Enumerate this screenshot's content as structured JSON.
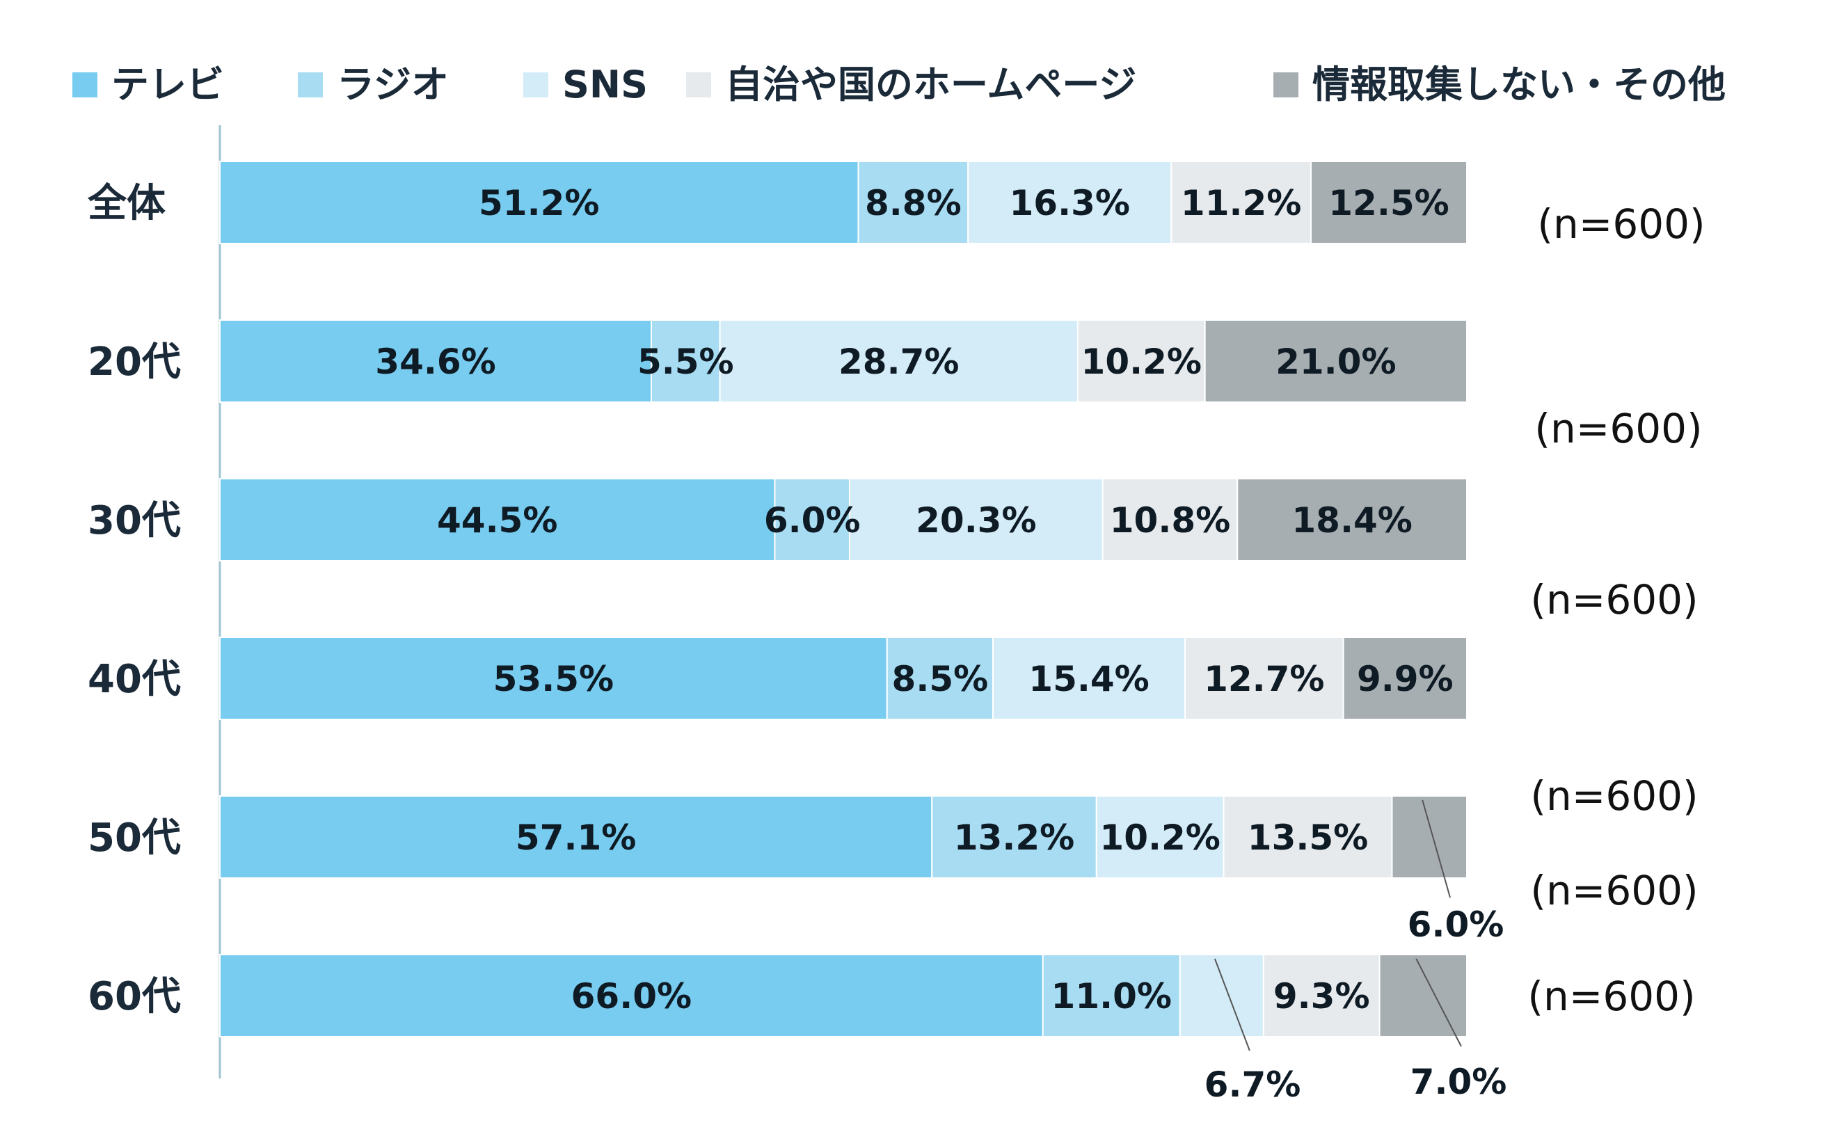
{
  "chart_data": {
    "type": "bar",
    "orientation": "horizontal",
    "stacked": true,
    "title": "",
    "xlabel": "",
    "ylabel": "",
    "xlim": [
      0,
      100
    ],
    "legend_position": "top",
    "categories": [
      "全体",
      "20代",
      "30代",
      "40代",
      "50代",
      "60代"
    ],
    "n_labels": [
      "(n=600)",
      "(n=600)",
      "(n=600)",
      "(n=600)",
      "(n=600)",
      "(n=600)"
    ],
    "series": [
      {
        "name": "テレビ",
        "color": "#78ccef",
        "values": [
          51.2,
          34.6,
          44.5,
          53.5,
          57.1,
          66.0
        ],
        "labels": [
          "51.2%",
          "34.6%",
          "44.5%",
          "53.5%",
          "57.1%",
          "66.0%"
        ]
      },
      {
        "name": "ラジオ",
        "color": "#a8dcf2",
        "values": [
          8.8,
          5.5,
          6.0,
          8.5,
          13.2,
          11.0
        ],
        "labels": [
          "8.8%",
          "5.5%",
          "6.0%",
          "8.5%",
          "13.2%",
          "11.0%"
        ]
      },
      {
        "name": "SNS",
        "color": "#d4ecf8",
        "values": [
          16.3,
          28.7,
          20.3,
          15.4,
          10.2,
          6.7
        ],
        "labels": [
          "16.3%",
          "28.7%",
          "20.3%",
          "15.4%",
          "10.2%",
          "6.7%"
        ]
      },
      {
        "name": "自治や国のホームページ",
        "color": "#e6eaed",
        "values": [
          11.2,
          10.2,
          10.8,
          12.7,
          13.5,
          9.3
        ],
        "labels": [
          "11.2%",
          "10.2%",
          "10.8%",
          "12.7%",
          "13.5%",
          "9.3%"
        ]
      },
      {
        "name": "情報取集しない・その他",
        "color": "#a7aeb2",
        "values": [
          12.5,
          21.0,
          18.4,
          9.9,
          6.0,
          7.0
        ],
        "labels": [
          "12.5%",
          "21.0%",
          "18.4%",
          "9.9%",
          "6.0%",
          "7.0%"
        ]
      }
    ]
  }
}
